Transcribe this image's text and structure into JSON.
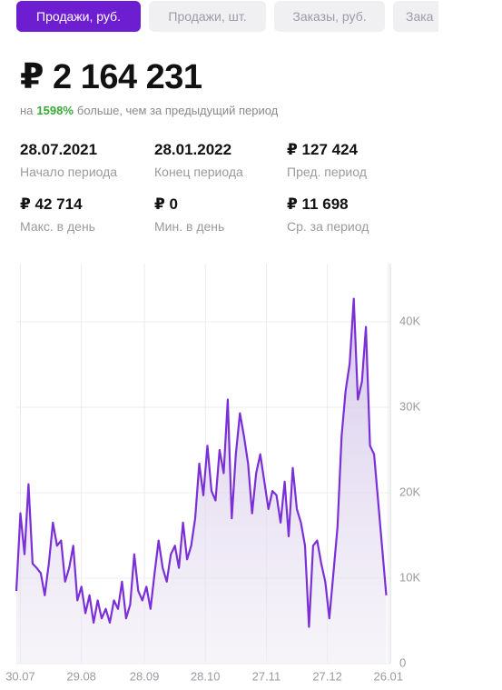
{
  "tabs": [
    "Продажи, руб.",
    "Продажи, шт.",
    "Заказы, руб.",
    "Зака"
  ],
  "total": "₽ 2 164 231",
  "comparison": {
    "prefix": "на",
    "percent": "1598%",
    "suffix": "больше, чем за предыдущий период"
  },
  "stats": [
    {
      "value": "28.07.2021",
      "label": "Начало периода"
    },
    {
      "value": "28.01.2022",
      "label": "Конец периода"
    },
    {
      "value": "₽  127 424",
      "label": "Пред. период"
    },
    {
      "value": "₽ 42 714",
      "label": "Макс. в день"
    },
    {
      "value": "₽ 0",
      "label": "Мин. в день"
    },
    {
      "value": "₽ 11 698",
      "label": "Ср. за период"
    }
  ],
  "chart_data": {
    "type": "line",
    "x": [
      0,
      2,
      4,
      6,
      8,
      10,
      12,
      14,
      16,
      18,
      20,
      22,
      24,
      26,
      28,
      30,
      32,
      34,
      36,
      38,
      40,
      42,
      44,
      46,
      48,
      50,
      52,
      54,
      56,
      58,
      60,
      62,
      64,
      66,
      68,
      70,
      72,
      74,
      76,
      78,
      80,
      82,
      84,
      86,
      88,
      90,
      92,
      94,
      96,
      98,
      100,
      102,
      104,
      106,
      108,
      110,
      112,
      114,
      116,
      118,
      120,
      122,
      124,
      126,
      128,
      130,
      132,
      134,
      136,
      138,
      140,
      142,
      144,
      146,
      148,
      150,
      152,
      154,
      156,
      158,
      160,
      162,
      164,
      166,
      168,
      170,
      172,
      174,
      176,
      182
    ],
    "series": [
      {
        "name": "Продажи, руб.",
        "color": "#7b2fd6",
        "values": [
          8500,
          17600,
          12800,
          21000,
          11700,
          11200,
          10600,
          8000,
          11700,
          16500,
          13800,
          14400,
          9600,
          11200,
          13800,
          7400,
          9000,
          5900,
          8000,
          4800,
          7400,
          5300,
          6400,
          4800,
          7400,
          6400,
          9600,
          5300,
          6900,
          12800,
          8500,
          7400,
          9000,
          6400,
          10600,
          14400,
          11200,
          9600,
          12800,
          13800,
          11200,
          16500,
          12200,
          13800,
          17000,
          23400,
          19700,
          25500,
          20200,
          19100,
          25000,
          22300,
          30900,
          17000,
          24500,
          29300,
          26600,
          23400,
          17600,
          22300,
          24500,
          21300,
          18100,
          20200,
          19700,
          16500,
          21300,
          14900,
          22900,
          18100,
          16500,
          13800,
          4300,
          13800,
          14400,
          11700,
          9600,
          5300,
          10600,
          16000,
          26600,
          31900,
          35100,
          42700,
          30900,
          33000,
          39400,
          25500,
          24500,
          8000
        ]
      }
    ],
    "xlim": [
      0,
      184
    ],
    "xticks": [
      {
        "value": 2,
        "label": "30.07"
      },
      {
        "value": 32,
        "label": "29.08"
      },
      {
        "value": 63,
        "label": "28.09"
      },
      {
        "value": 93,
        "label": "28.10"
      },
      {
        "value": 123,
        "label": "27.11"
      },
      {
        "value": 153,
        "label": "27.12"
      },
      {
        "value": 183,
        "label": "26.01"
      }
    ],
    "ylim": [
      0,
      46000
    ],
    "yticks": [
      0,
      {
        "value": 10000,
        "label": "10K"
      },
      {
        "value": 20000,
        "label": "20K"
      },
      {
        "value": 30000,
        "label": "30K"
      },
      {
        "value": 40000,
        "label": "40K"
      }
    ],
    "grid": true
  }
}
